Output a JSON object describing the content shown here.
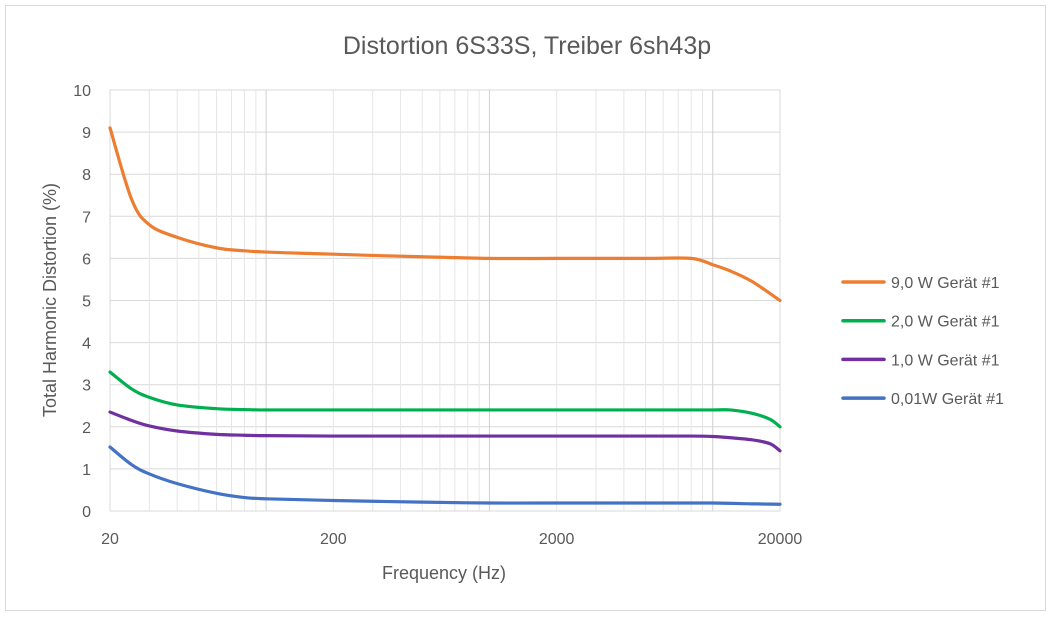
{
  "chart_data": {
    "type": "line",
    "title": "Distortion 6S33S, Treiber 6sh43p",
    "xlabel": "Frequency (Hz)",
    "ylabel": "Total Harmonic Distortion (%)",
    "xscale": "log",
    "xlim": [
      20,
      20000
    ],
    "ylim": [
      0,
      10
    ],
    "xticks": [
      "20",
      "200",
      "2000",
      "20000"
    ],
    "yticks": [
      "0",
      "1",
      "2",
      "3",
      "4",
      "5",
      "6",
      "7",
      "8",
      "9",
      "10"
    ],
    "grid": true,
    "legend": "right",
    "series": [
      {
        "name": "9,0 W Gerät #1",
        "color": "#ED7D31",
        "x": [
          20,
          25,
          30,
          40,
          60,
          80,
          100,
          150,
          200,
          300,
          500,
          1000,
          2000,
          5000,
          8000,
          10000,
          12000,
          15000,
          20000
        ],
        "y": [
          9.1,
          7.4,
          6.8,
          6.5,
          6.25,
          6.18,
          6.15,
          6.12,
          6.1,
          6.07,
          6.04,
          6.0,
          6.0,
          6.0,
          6.0,
          5.85,
          5.7,
          5.45,
          5.0
        ]
      },
      {
        "name": "2,0 W Gerät #1",
        "color": "#00B050",
        "x": [
          20,
          25,
          30,
          40,
          60,
          80,
          100,
          200,
          500,
          1000,
          2000,
          5000,
          10000,
          12000,
          15000,
          18000,
          20000
        ],
        "y": [
          3.3,
          2.9,
          2.7,
          2.52,
          2.43,
          2.41,
          2.4,
          2.4,
          2.4,
          2.4,
          2.4,
          2.4,
          2.4,
          2.4,
          2.32,
          2.18,
          2.0
        ]
      },
      {
        "name": "1,0 W Gerät #1",
        "color": "#7030A0",
        "x": [
          20,
          25,
          30,
          40,
          60,
          80,
          100,
          200,
          500,
          1000,
          2000,
          5000,
          8000,
          10000,
          12000,
          15000,
          18000,
          20000
        ],
        "y": [
          2.35,
          2.15,
          2.02,
          1.9,
          1.82,
          1.8,
          1.79,
          1.78,
          1.78,
          1.78,
          1.78,
          1.78,
          1.78,
          1.77,
          1.74,
          1.69,
          1.6,
          1.43
        ]
      },
      {
        "name": "0,01W Gerät #1",
        "color": "#4472C4",
        "x": [
          20,
          25,
          30,
          40,
          60,
          80,
          100,
          200,
          500,
          1000,
          2000,
          5000,
          10000,
          15000,
          20000
        ],
        "y": [
          1.52,
          1.1,
          0.88,
          0.65,
          0.42,
          0.32,
          0.29,
          0.25,
          0.21,
          0.19,
          0.19,
          0.19,
          0.19,
          0.17,
          0.16
        ]
      }
    ]
  }
}
